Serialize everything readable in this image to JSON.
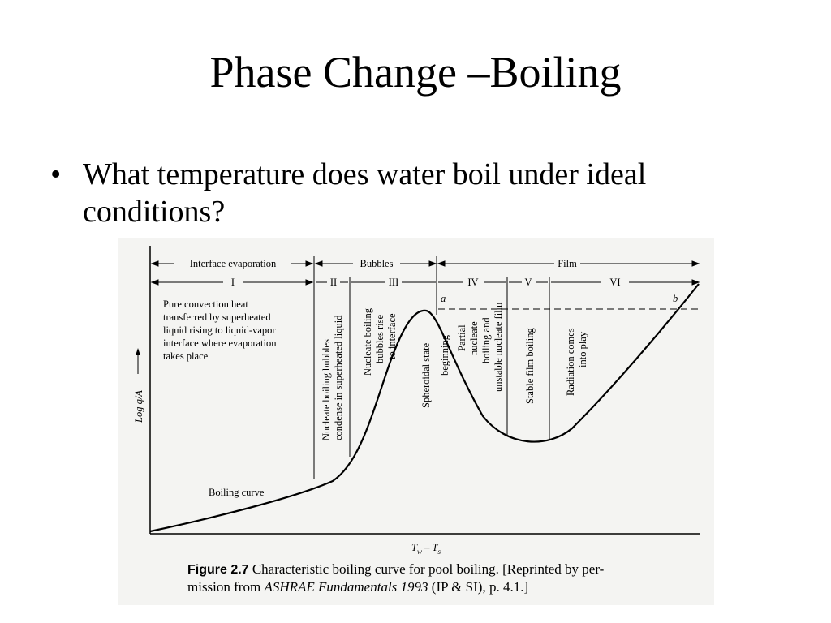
{
  "slide": {
    "title": "Phase Change –Boiling",
    "bullet_marker": "•",
    "bullet_text": "What temperature does water boil under ideal conditions?"
  },
  "figure": {
    "regimes": {
      "interface_evaporation": "Interface evaporation",
      "bubbles": "Bubbles",
      "film": "Film"
    },
    "roman": [
      "I",
      "II",
      "III",
      "IV",
      "V",
      "VI"
    ],
    "descriptions": {
      "I": [
        "Pure convection heat",
        "transferred by superheated",
        "liquid rising to liquid-vapor",
        "interface where evaporation",
        "takes place"
      ],
      "II": [
        "Nucleate boiling bubbles",
        "condense in superheated liquid"
      ],
      "III": [
        "Nucleate boiling",
        "bubbles rise",
        "to interface"
      ],
      "spheroidal": "Spheroidal state",
      "beginning": "beginning",
      "IV": [
        "Partial",
        "nucleate",
        "boiling and",
        "unstable nucleate film"
      ],
      "V": "Stable film boiling",
      "VI": [
        "Radiation comes",
        "into play"
      ]
    },
    "point_a": "a",
    "point_b": "b",
    "curve_label": "Boiling curve",
    "y_axis_label": "Log q/A",
    "x_axis_label": "Tₑ – Tₛ",
    "x_axis_parts": {
      "t1": "T",
      "s1": "w",
      "dash": "–",
      "t2": "T",
      "s2": "s"
    },
    "caption": {
      "label": "Figure 2.7",
      "line1": "Characteristic boiling curve for pool boiling. [Reprinted by per-",
      "line2a": "mission from ",
      "line2b": "ASHRAE Fundamentals 1993",
      "line2c": " (IP & SI), p. 4.1.]"
    }
  }
}
